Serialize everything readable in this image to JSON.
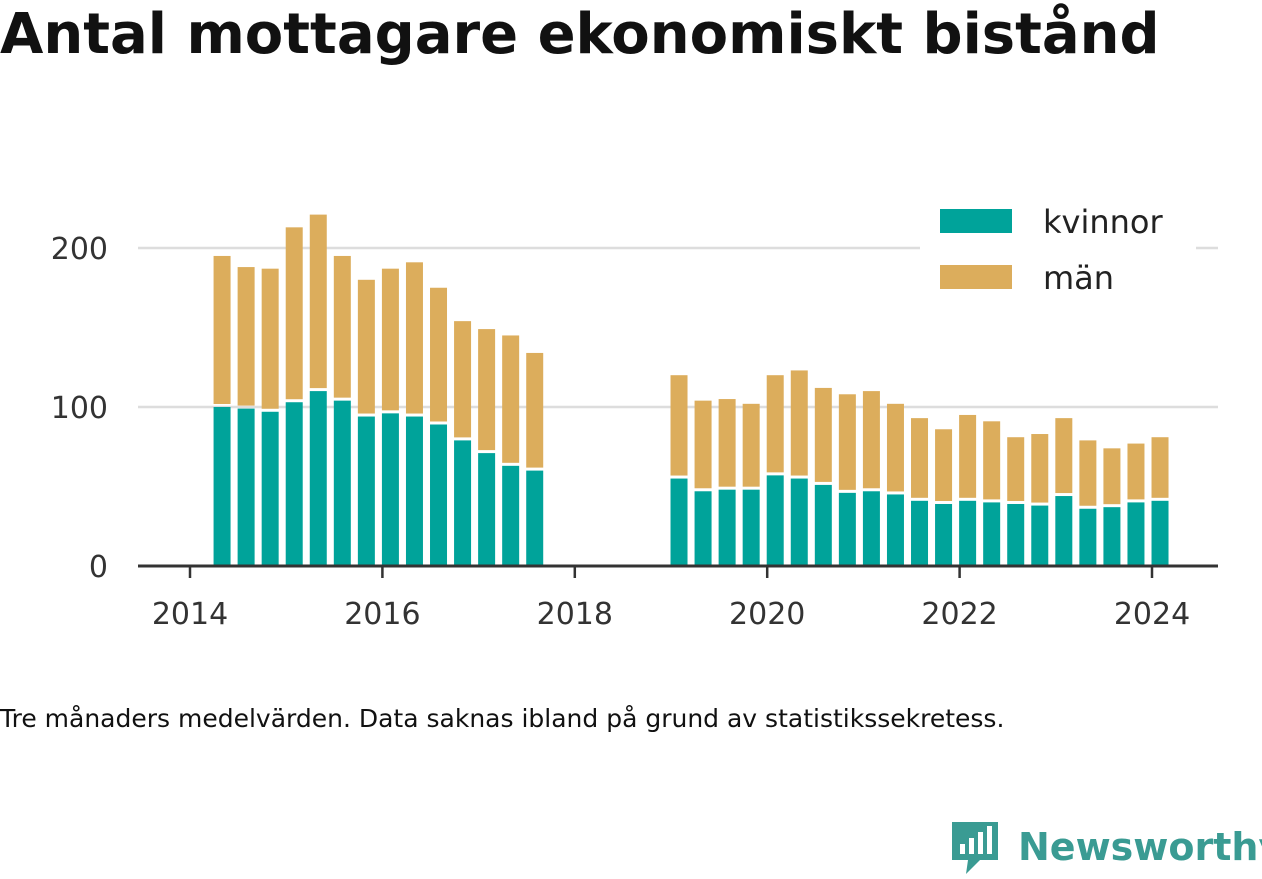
{
  "title": "Antal mottagare ekonomiskt bistånd",
  "note": "Tre månaders medelvärden. Data saknas ibland på grund av statistikssekretess.",
  "brand": "Newsworthy",
  "colors": {
    "kvinnor": "#00a39a",
    "man": "#dcad5c",
    "grid": "#dddddd",
    "axis": "#333333",
    "brand": "#3a9b93"
  },
  "chart_data": {
    "type": "bar",
    "stacked": true,
    "x_ticks": [
      "2014",
      "2016",
      "2018",
      "2020",
      "2022",
      "2024"
    ],
    "y_ticks": [
      "0",
      "100",
      "200"
    ],
    "ylim": [
      0,
      200
    ],
    "legend": "top-right",
    "grid": true,
    "x": [
      "2014-05",
      "2014-08",
      "2014-11",
      "2015-02",
      "2015-05",
      "2015-08",
      "2015-11",
      "2016-02",
      "2016-05",
      "2016-08",
      "2016-11",
      "2017-02",
      "2017-05",
      "2017-08",
      "2019-02",
      "2019-05",
      "2019-08",
      "2019-11",
      "2020-02",
      "2020-05",
      "2020-08",
      "2020-11",
      "2021-02",
      "2021-05",
      "2021-08",
      "2021-11",
      "2022-02",
      "2022-05",
      "2022-08",
      "2022-11",
      "2023-02",
      "2023-05",
      "2023-08",
      "2023-11",
      "2024-02"
    ],
    "series": [
      {
        "name": "kvinnor",
        "values": [
          100,
          99,
          97,
          103,
          110,
          104,
          94,
          96,
          94,
          89,
          79,
          71,
          63,
          60,
          55,
          47,
          48,
          48,
          57,
          55,
          51,
          46,
          47,
          45,
          41,
          39,
          41,
          40,
          39,
          38,
          44,
          36,
          37,
          40,
          41
        ]
      },
      {
        "name": "män",
        "values": [
          95,
          89,
          90,
          110,
          111,
          91,
          86,
          91,
          97,
          86,
          75,
          78,
          82,
          74,
          65,
          57,
          57,
          54,
          63,
          68,
          61,
          62,
          63,
          57,
          52,
          47,
          54,
          51,
          42,
          45,
          49,
          43,
          37,
          37,
          40
        ]
      }
    ]
  }
}
